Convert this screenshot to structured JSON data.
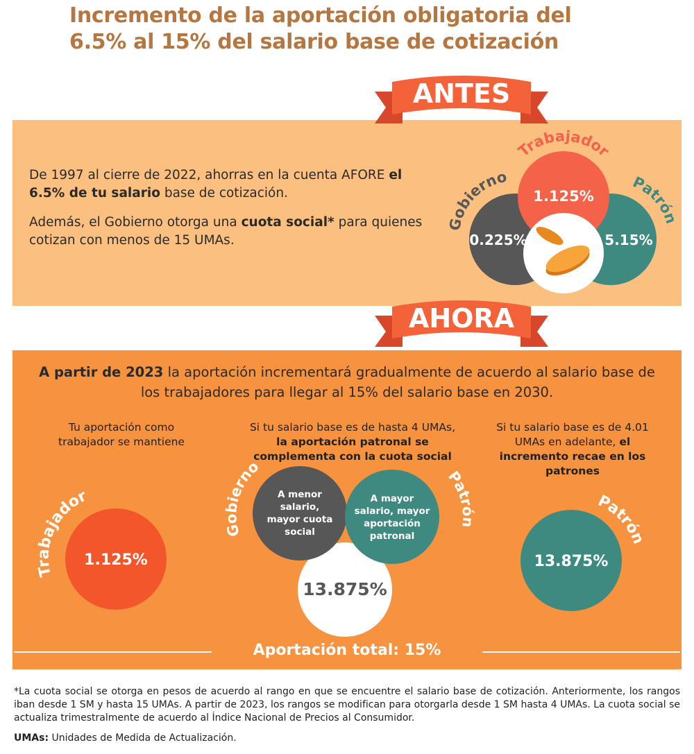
{
  "title": [
    "Incremento de la aportación obligatoria del",
    "6.5% al 15% del salario base de cotización"
  ],
  "antes": {
    "banner": "ANTES",
    "text": [
      [
        "De 1997 al cierre de 2022, ahorras en la cuenta AFORE",
        "el 6.5% de tu salario",
        "base de cotización."
      ],
      [
        "Además, el Gobierno otorga una",
        "cuota social*",
        "para quienes cotizan con menos de 15 UMAs."
      ]
    ],
    "venn": [
      {
        "label": "Trabajador",
        "value": "1.125%"
      },
      {
        "label": "Gobierno",
        "value": "0.225%"
      },
      {
        "label": "Patrón",
        "value": "5.15%"
      }
    ]
  },
  "ahora": {
    "banner": "AHORA",
    "intro": [
      "A partir de 2023",
      "la aportación incrementará gradualmente de acuerdo al salario base de los trabajadores para llegar al 15% del salario base en 2030."
    ],
    "columns": [
      {
        "text": [
          "Tu aportación como trabajador se mantiene"
        ],
        "label": "Trabajador",
        "value": "1.125%"
      },
      {
        "text": [
          "Si tu salario base es de hasta 4 UMAs,",
          "la aportación patronal se complementa con la cuota social"
        ],
        "labels": [
          "Gobierno",
          "Patrón"
        ],
        "circles": [
          "A menor salario, mayor cuota social",
          "A mayor salario, mayor aportación patronal",
          "13.875%"
        ]
      },
      {
        "text": [
          "Si tu salario base es de 4.01 UMAs en adelante,",
          "el incremento recae en los patrones"
        ],
        "label": "Patrón",
        "value": "13.875%"
      }
    ],
    "total": "Aportación total: 15%"
  },
  "footnote": {
    "note": "*La cuota social se otorga en pesos de acuerdo al rango en que se encuentre el salario base de cotización. Anteriormente, los rangos iban desde 1 SM y hasta 15 UMAs. A partir de 2023, los rangos se modifican para otorgarla desde 1 SM hasta 4 UMAs. La cuota social se actualiza trimestralmente de acuerdo al Índice Nacional de Precios al Consumidor.",
    "definition": [
      "UMAs:",
      "Unidades de Medida de Actualización."
    ]
  }
}
